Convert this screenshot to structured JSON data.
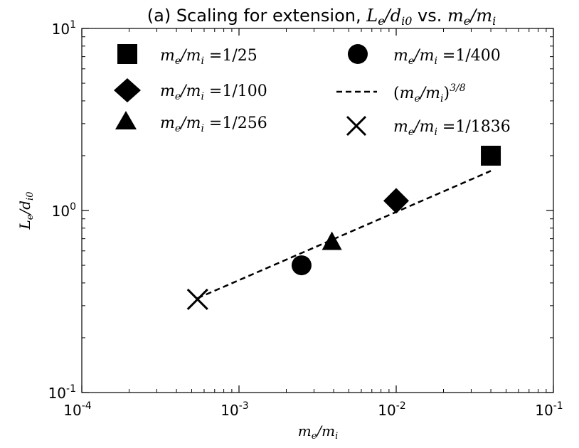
{
  "chart_data": {
    "type": "scatter",
    "title_prefix": "(a) Scaling for extension, ",
    "title_y": "L",
    "title_y_sub": "e",
    "title_y_den": "d",
    "title_y_den_sub": "i0",
    "title_mid": " vs. ",
    "title_x_num": "m",
    "title_x_num_sub": "e",
    "title_x_den": "m",
    "title_x_den_sub": "i",
    "xlabel": "m_e/m_i",
    "ylabel": "L_e/d_i0",
    "xscale": "log",
    "yscale": "log",
    "xlim": [
      0.0001,
      0.1
    ],
    "ylim": [
      0.1,
      10
    ],
    "grid": false,
    "x_tick_labels": [
      {
        "base": "10",
        "exp": "-4",
        "value": 0.0001
      },
      {
        "base": "10",
        "exp": "-3",
        "value": 0.001
      },
      {
        "base": "10",
        "exp": "-2",
        "value": 0.01
      },
      {
        "base": "10",
        "exp": "-1",
        "value": 0.1
      }
    ],
    "y_tick_labels": [
      {
        "base": "10",
        "exp": "-1",
        "value": 0.1
      },
      {
        "base": "10",
        "exp": "0",
        "value": 1
      },
      {
        "base": "10",
        "exp": "1",
        "value": 10
      }
    ],
    "series": [
      {
        "name": "m_e/m_i =1/25",
        "marker": "square",
        "x": 0.04,
        "y": 2.0,
        "ratio": "1/25"
      },
      {
        "name": "m_e/m_i =1/100",
        "marker": "diamond",
        "x": 0.01,
        "y": 1.13,
        "ratio": "1/100"
      },
      {
        "name": "m_e/m_i =1/256",
        "marker": "triangle",
        "x": 0.0039,
        "y": 0.67,
        "ratio": "1/256"
      },
      {
        "name": "m_e/m_i =1/400",
        "marker": "circle",
        "x": 0.0025,
        "y": 0.5,
        "ratio": "1/400"
      },
      {
        "name": "m_e/m_i =1/1836",
        "marker": "x",
        "x": 0.000545,
        "y": 0.325,
        "ratio": "1/1836"
      }
    ],
    "fit_line": {
      "name": "(m_e/m_i)^{3/8}",
      "exponent_label": "3/8",
      "style": "dashed",
      "x": [
        0.000545,
        0.04
      ],
      "y": [
        0.33,
        1.65
      ]
    },
    "legend": {
      "placement": "top",
      "order": [
        "square",
        "circle",
        "diamond",
        "fit",
        "triangle",
        "x"
      ]
    }
  }
}
